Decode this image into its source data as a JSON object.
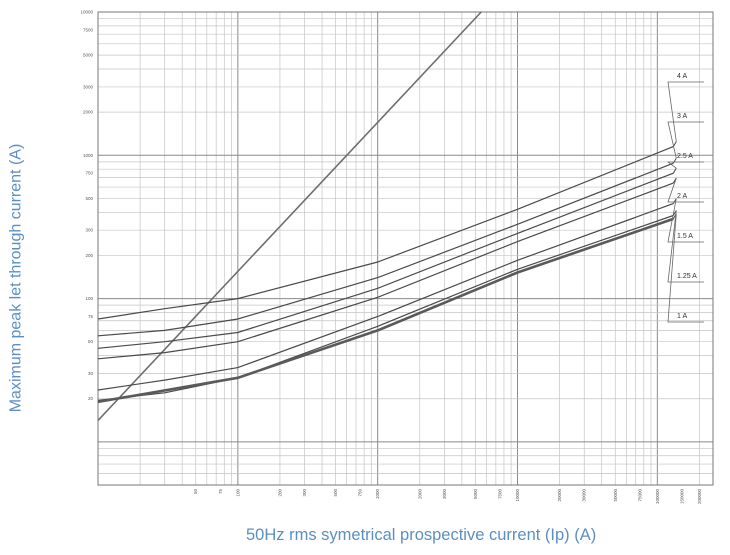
{
  "chart_data": {
    "type": "line",
    "xlabel": "50Hz rms symetrical prospective current (Ip) (A)",
    "ylabel": "Maximum peak let through current (A)",
    "x_scale": "log",
    "y_scale": "log",
    "xlim": [
      10,
      250000
    ],
    "ylim": [
      5,
      10000
    ],
    "grid": true,
    "x_ticks": [
      "50",
      "75",
      "100",
      "200",
      "300",
      "500",
      "750",
      "1000",
      "2000",
      "3000",
      "5000",
      "7500",
      "10000",
      "20000",
      "30000",
      "50000",
      "75000",
      "100000",
      "150000",
      "200000"
    ],
    "y_ticks": [
      "10000",
      "7500",
      "5000",
      "3000",
      "2000",
      "1000",
      "750",
      "500",
      "300",
      "200",
      "100",
      "75",
      "50",
      "30",
      "20"
    ],
    "reference_line": {
      "x": [
        10,
        5500
      ],
      "y": [
        14.1,
        10000
      ]
    },
    "series": [
      {
        "name": "4 A",
        "x": [
          10,
          30,
          100,
          1000,
          10000,
          130000
        ],
        "y": [
          72,
          85,
          100,
          180,
          420,
          1150
        ]
      },
      {
        "name": "3 A",
        "x": [
          10,
          30,
          100,
          1000,
          10000,
          130000
        ],
        "y": [
          55,
          60,
          72,
          140,
          330,
          880
        ]
      },
      {
        "name": "2.5 A",
        "x": [
          10,
          30,
          100,
          1000,
          10000,
          130000
        ],
        "y": [
          45,
          50,
          58,
          118,
          285,
          750
        ]
      },
      {
        "name": "2 A",
        "x": [
          10,
          30,
          100,
          1000,
          10000,
          130000
        ],
        "y": [
          38,
          42,
          50,
          102,
          250,
          640
        ]
      },
      {
        "name": "1.5 A",
        "x": [
          10,
          30,
          100,
          1000,
          10000,
          130000
        ],
        "y": [
          23,
          27,
          33,
          75,
          185,
          460
        ]
      },
      {
        "name": "1.25 A",
        "x": [
          10,
          30,
          100,
          1000,
          10000,
          130000
        ],
        "y": [
          19.5,
          22,
          28,
          64,
          160,
          380
        ]
      },
      {
        "name": "1 A",
        "x": [
          10,
          100,
          1000,
          10000,
          130000
        ],
        "y": [
          19,
          28,
          60,
          152,
          360
        ]
      }
    ]
  }
}
